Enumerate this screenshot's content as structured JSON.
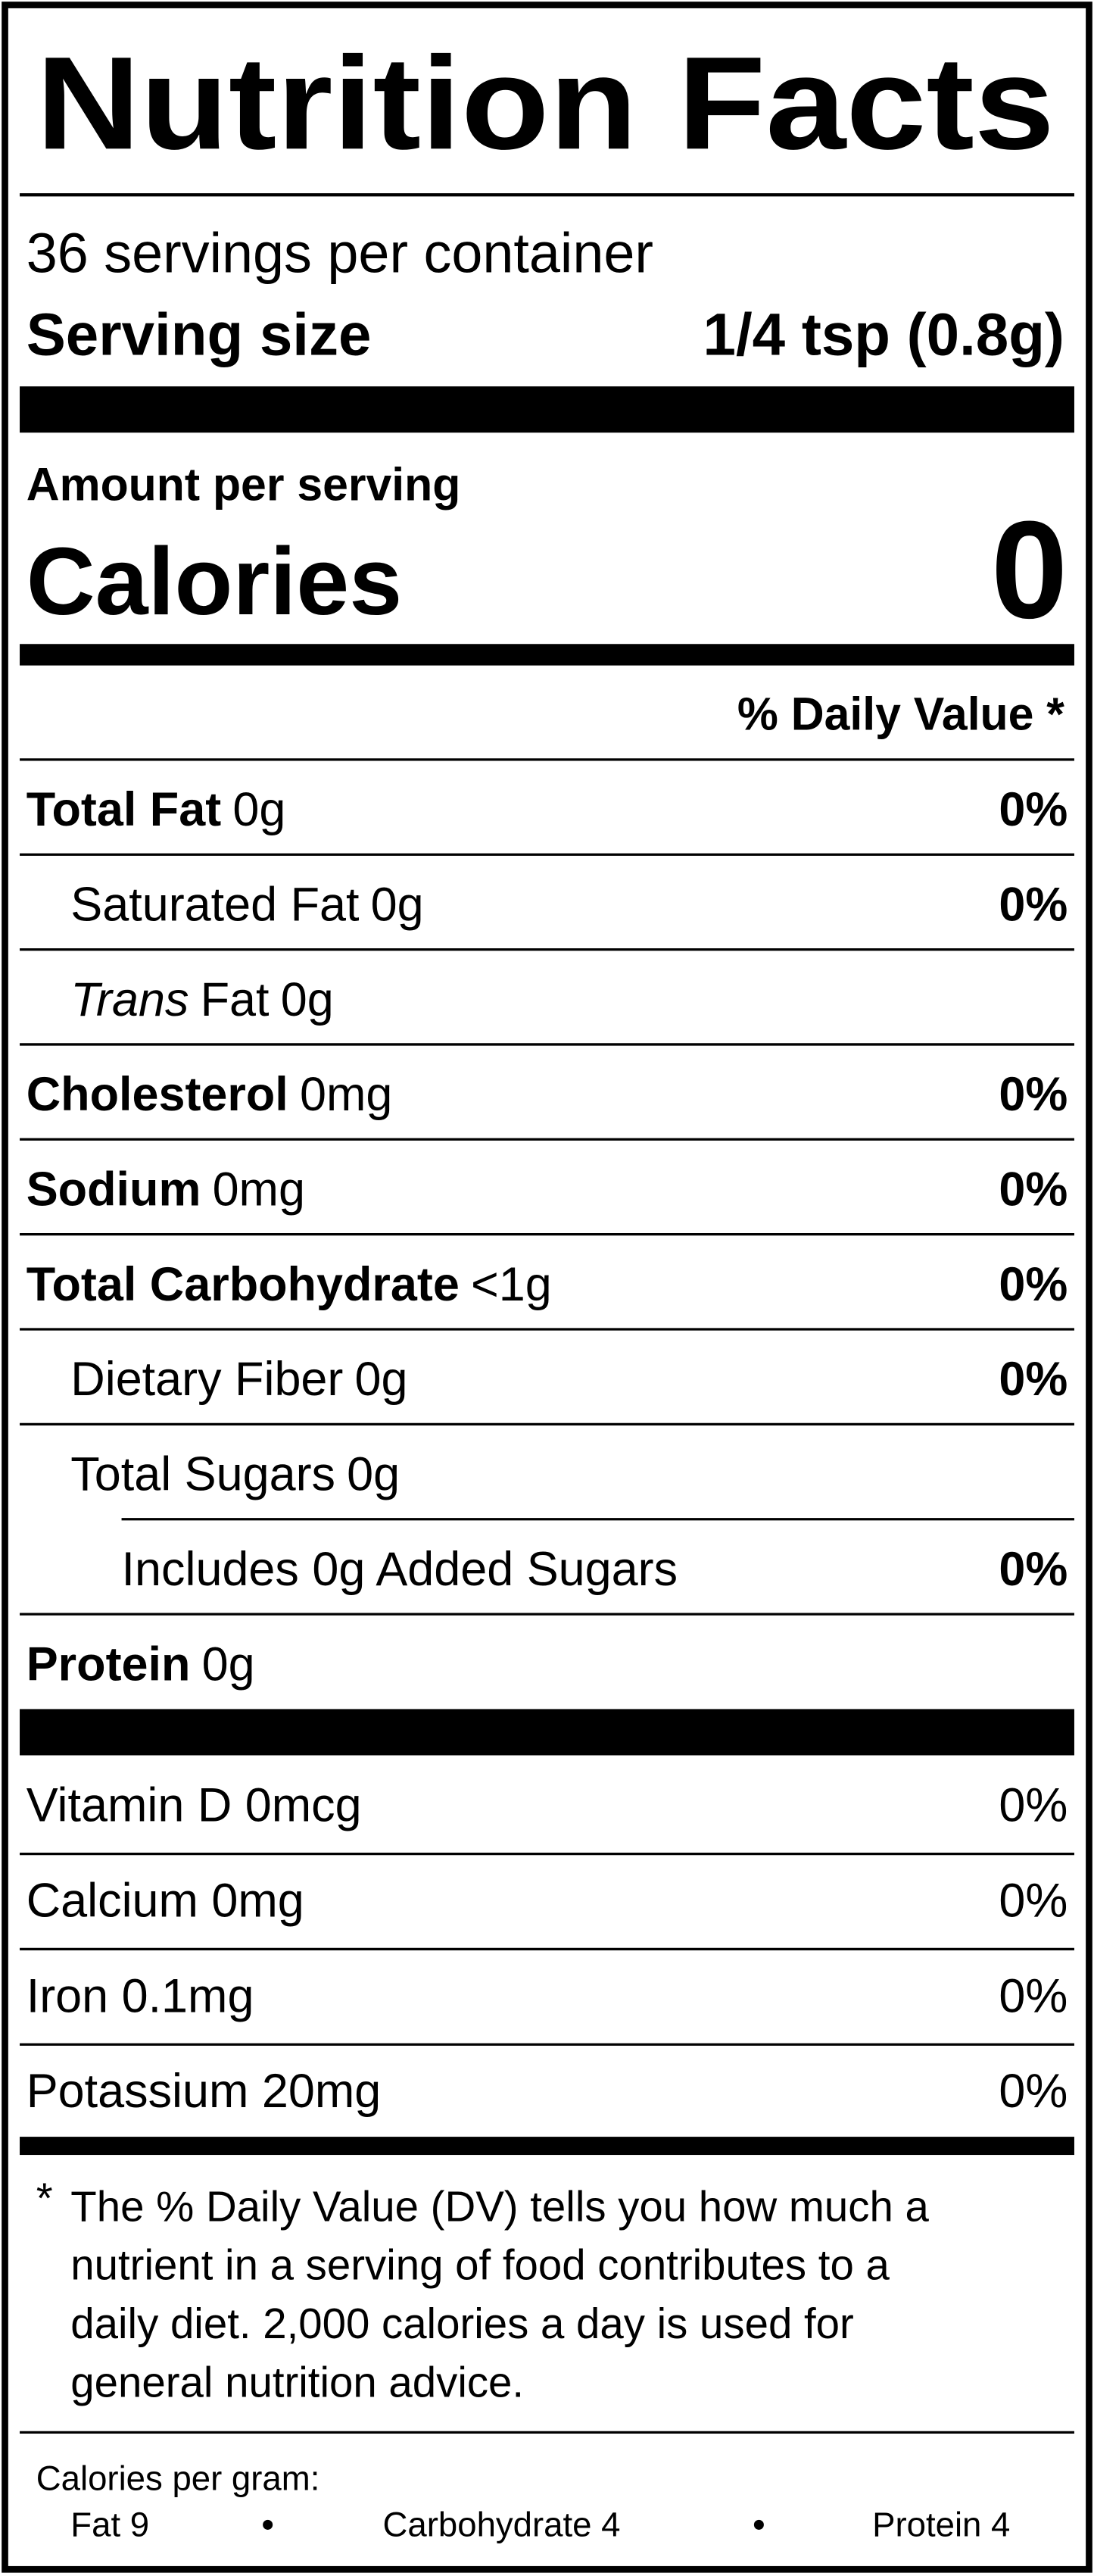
{
  "title": "Nutrition Facts",
  "servings_per_container": "36 servings per container",
  "serving_size": {
    "label": "Serving size",
    "value": "1/4 tsp (0.8g)"
  },
  "amount_per_serving": "Amount per serving",
  "calories": {
    "label": "Calories",
    "value": "0"
  },
  "daily_value_header": "% Daily Value *",
  "nutrients": [
    {
      "name": "Total Fat",
      "amount": "0g",
      "dv": "0%"
    },
    {
      "name": "Saturated Fat",
      "amount": "0g",
      "dv": "0%"
    },
    {
      "name_italic": "Trans",
      "name": "Fat",
      "amount": "0g"
    },
    {
      "name": "Cholesterol",
      "amount": "0mg",
      "dv": "0%"
    },
    {
      "name": "Sodium",
      "amount": "0mg",
      "dv": "0%"
    },
    {
      "name": "Total Carbohydrate",
      "amount": "<1g",
      "dv": "0%"
    },
    {
      "name": "Dietary Fiber",
      "amount": "0g",
      "dv": "0%"
    },
    {
      "name": "Total Sugars",
      "amount": "0g"
    },
    {
      "name": "Includes 0g Added Sugars",
      "dv": "0%"
    },
    {
      "name": "Protein",
      "amount": "0g"
    }
  ],
  "vitamins": [
    {
      "label": "Vitamin D 0mcg",
      "dv": "0%"
    },
    {
      "label": "Calcium 0mg",
      "dv": "0%"
    },
    {
      "label": "Iron 0.1mg",
      "dv": "0%"
    },
    {
      "label": "Potassium 20mg",
      "dv": "0%"
    }
  ],
  "footnote": {
    "marker": "*",
    "lines": [
      "The % Daily Value (DV) tells you how much a",
      "nutrient in a serving of food contributes to a",
      "daily diet. 2,000 calories a day is used for",
      "general nutrition advice."
    ]
  },
  "calories_per_gram": {
    "label": "Calories per gram:",
    "items": [
      "Fat 9",
      "Carbohydrate 4",
      "Protein 4"
    ]
  }
}
